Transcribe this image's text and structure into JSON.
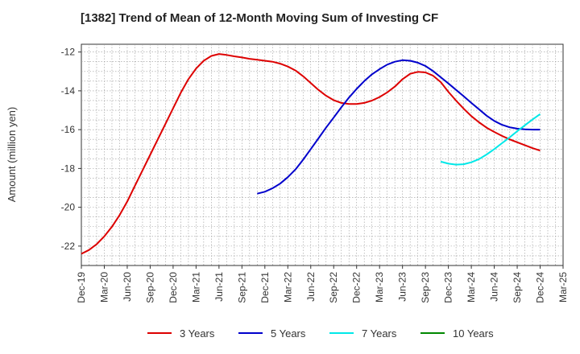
{
  "chart_data": {
    "type": "line",
    "title": "[1382]  Trend of Mean of 12-Month Moving Sum of Investing CF",
    "ylabel": "Amount (million yen)",
    "xlabel": "",
    "x_ticks": [
      "Dec-19",
      "Mar-20",
      "Jun-20",
      "Sep-20",
      "Dec-20",
      "Mar-21",
      "Jun-21",
      "Sep-21",
      "Dec-21",
      "Mar-22",
      "Jun-22",
      "Sep-22",
      "Dec-22",
      "Mar-23",
      "Jun-23",
      "Sep-23",
      "Dec-23",
      "Mar-24",
      "Jun-24",
      "Sep-24",
      "Dec-24",
      "Mar-25"
    ],
    "xlim": [
      "2019-12",
      "2025-03"
    ],
    "ylim": [
      -23,
      -11.6
    ],
    "y_ticks": [
      -12,
      -14,
      -16,
      -18,
      -20,
      -22
    ],
    "grid": true,
    "legend_position": "bottom",
    "series": [
      {
        "name": "3 Years",
        "color": "#dd0000",
        "points": [
          [
            "2019-12",
            -22.4
          ],
          [
            "2020-01",
            -22.2
          ],
          [
            "2020-02",
            -21.9
          ],
          [
            "2020-03",
            -21.5
          ],
          [
            "2020-04",
            -21.0
          ],
          [
            "2020-05",
            -20.4
          ],
          [
            "2020-06",
            -19.7
          ],
          [
            "2020-07",
            -18.9
          ],
          [
            "2020-08",
            -18.1
          ],
          [
            "2020-09",
            -17.3
          ],
          [
            "2020-10",
            -16.5
          ],
          [
            "2020-11",
            -15.7
          ],
          [
            "2020-12",
            -14.9
          ],
          [
            "2021-01",
            -14.1
          ],
          [
            "2021-02",
            -13.4
          ],
          [
            "2021-03",
            -12.85
          ],
          [
            "2021-04",
            -12.45
          ],
          [
            "2021-05",
            -12.2
          ],
          [
            "2021-06",
            -12.1
          ],
          [
            "2021-07",
            -12.15
          ],
          [
            "2021-08",
            -12.22
          ],
          [
            "2021-09",
            -12.28
          ],
          [
            "2021-10",
            -12.35
          ],
          [
            "2021-11",
            -12.4
          ],
          [
            "2021-12",
            -12.45
          ],
          [
            "2022-01",
            -12.5
          ],
          [
            "2022-02",
            -12.6
          ],
          [
            "2022-03",
            -12.75
          ],
          [
            "2022-04",
            -12.95
          ],
          [
            "2022-05",
            -13.25
          ],
          [
            "2022-06",
            -13.6
          ],
          [
            "2022-07",
            -13.95
          ],
          [
            "2022-08",
            -14.25
          ],
          [
            "2022-09",
            -14.48
          ],
          [
            "2022-10",
            -14.62
          ],
          [
            "2022-11",
            -14.68
          ],
          [
            "2022-12",
            -14.68
          ],
          [
            "2023-01",
            -14.62
          ],
          [
            "2023-02",
            -14.5
          ],
          [
            "2023-03",
            -14.32
          ],
          [
            "2023-04",
            -14.08
          ],
          [
            "2023-05",
            -13.78
          ],
          [
            "2023-06",
            -13.4
          ],
          [
            "2023-07",
            -13.12
          ],
          [
            "2023-08",
            -13.02
          ],
          [
            "2023-09",
            -13.05
          ],
          [
            "2023-10",
            -13.22
          ],
          [
            "2023-11",
            -13.55
          ],
          [
            "2023-12",
            -14.05
          ],
          [
            "2024-01",
            -14.5
          ],
          [
            "2024-02",
            -14.92
          ],
          [
            "2024-03",
            -15.3
          ],
          [
            "2024-04",
            -15.62
          ],
          [
            "2024-05",
            -15.9
          ],
          [
            "2024-06",
            -16.12
          ],
          [
            "2024-07",
            -16.32
          ],
          [
            "2024-08",
            -16.5
          ],
          [
            "2024-09",
            -16.65
          ],
          [
            "2024-10",
            -16.8
          ],
          [
            "2024-11",
            -16.95
          ],
          [
            "2024-12",
            -17.08
          ]
        ]
      },
      {
        "name": "5 Years",
        "color": "#0000cc",
        "points": [
          [
            "2021-11",
            -19.3
          ],
          [
            "2021-12",
            -19.2
          ],
          [
            "2022-01",
            -19.02
          ],
          [
            "2022-02",
            -18.78
          ],
          [
            "2022-03",
            -18.45
          ],
          [
            "2022-04",
            -18.05
          ],
          [
            "2022-05",
            -17.55
          ],
          [
            "2022-06",
            -17.0
          ],
          [
            "2022-07",
            -16.45
          ],
          [
            "2022-08",
            -15.9
          ],
          [
            "2022-09",
            -15.38
          ],
          [
            "2022-10",
            -14.85
          ],
          [
            "2022-11",
            -14.35
          ],
          [
            "2022-12",
            -13.9
          ],
          [
            "2023-01",
            -13.5
          ],
          [
            "2023-02",
            -13.15
          ],
          [
            "2023-03",
            -12.88
          ],
          [
            "2023-04",
            -12.65
          ],
          [
            "2023-05",
            -12.5
          ],
          [
            "2023-06",
            -12.42
          ],
          [
            "2023-07",
            -12.45
          ],
          [
            "2023-08",
            -12.55
          ],
          [
            "2023-09",
            -12.72
          ],
          [
            "2023-10",
            -12.98
          ],
          [
            "2023-11",
            -13.3
          ],
          [
            "2023-12",
            -13.62
          ],
          [
            "2024-01",
            -13.95
          ],
          [
            "2024-02",
            -14.28
          ],
          [
            "2024-03",
            -14.62
          ],
          [
            "2024-04",
            -14.95
          ],
          [
            "2024-05",
            -15.28
          ],
          [
            "2024-06",
            -15.55
          ],
          [
            "2024-07",
            -15.75
          ],
          [
            "2024-08",
            -15.88
          ],
          [
            "2024-09",
            -15.95
          ],
          [
            "2024-10",
            -15.98
          ],
          [
            "2024-11",
            -16.0
          ],
          [
            "2024-12",
            -16.0
          ]
        ]
      },
      {
        "name": "7 Years",
        "color": "#00e8e8",
        "points": [
          [
            "2023-11",
            -17.65
          ],
          [
            "2023-12",
            -17.75
          ],
          [
            "2024-01",
            -17.8
          ],
          [
            "2024-02",
            -17.78
          ],
          [
            "2024-03",
            -17.68
          ],
          [
            "2024-04",
            -17.52
          ],
          [
            "2024-05",
            -17.28
          ],
          [
            "2024-06",
            -17.0
          ],
          [
            "2024-07",
            -16.7
          ],
          [
            "2024-08",
            -16.4
          ],
          [
            "2024-09",
            -16.08
          ],
          [
            "2024-10",
            -15.78
          ],
          [
            "2024-11",
            -15.48
          ],
          [
            "2024-12",
            -15.2
          ]
        ]
      },
      {
        "name": "10 Years",
        "color": "#008800",
        "points": []
      }
    ]
  }
}
